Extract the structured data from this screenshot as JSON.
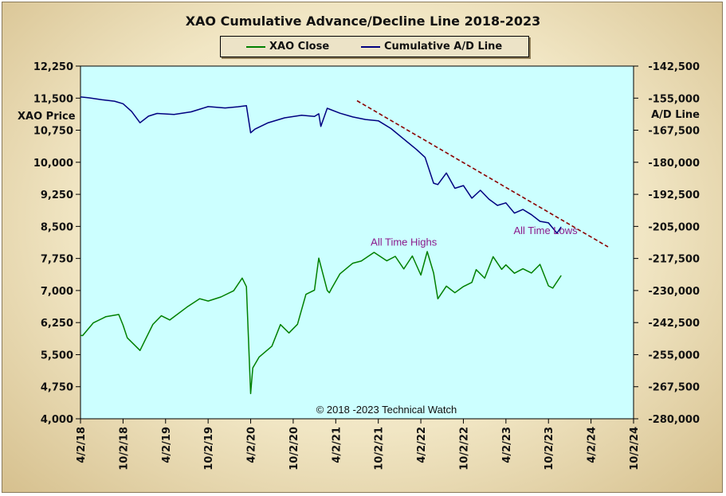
{
  "chart_data": {
    "type": "line",
    "title": "XAO Cumulative Advance/Decline Line 2018-2023",
    "y_left_label": "XAO Price",
    "y_right_label": "A/D Line",
    "y_left_ticks": [
      "12,250",
      "11,500",
      "10,750",
      "10,000",
      "9,250",
      "8,500",
      "7,750",
      "7,000",
      "6,250",
      "5,500",
      "4,750",
      "4,000"
    ],
    "y_right_ticks": [
      "-142,500",
      "-155,000",
      "-167,500",
      "-180,000",
      "-192,500",
      "-205,000",
      "-217,500",
      "-230,000",
      "-242,500",
      "-255,000",
      "-267,500",
      "-280,000"
    ],
    "x_tick_labels": [
      "4/2/18",
      "10/2/18",
      "4/2/19",
      "10/2/19",
      "4/2/20",
      "10/2/20",
      "4/2/21",
      "10/2/21",
      "4/2/22",
      "10/2/22",
      "4/2/23",
      "10/2/23",
      "4/2/24",
      "10/2/24"
    ],
    "ylim_left": [
      4000,
      12250
    ],
    "ylim_right": [
      -280000,
      -142500
    ],
    "xlim": [
      0,
      13
    ],
    "grid": false,
    "legend_placement": "top-center",
    "series": [
      {
        "name": "XAO Close",
        "axis": "left",
        "color": "#008000",
        "x": [
          0,
          0.05,
          0.3,
          0.6,
          0.9,
          1.0,
          1.1,
          1.4,
          1.5,
          1.7,
          1.9,
          2.1,
          2.5,
          2.8,
          3.0,
          3.3,
          3.6,
          3.8,
          3.9,
          4.0,
          4.05,
          4.2,
          4.5,
          4.7,
          4.9,
          5.1,
          5.3,
          5.5,
          5.6,
          5.8,
          5.85,
          5.9,
          6.1,
          6.4,
          6.6,
          6.9,
          7.2,
          7.4,
          7.6,
          7.8,
          8.0,
          8.15,
          8.3,
          8.4,
          8.6,
          8.8,
          9.0,
          9.2,
          9.3,
          9.5,
          9.7,
          9.9,
          10.0,
          10.2,
          10.4,
          10.6,
          10.8,
          11.0,
          11.1,
          11.3
        ],
        "y": [
          5950,
          5950,
          6250,
          6400,
          6450,
          6200,
          5900,
          5600,
          5800,
          6200,
          6400,
          6300,
          6600,
          6800,
          6750,
          6850,
          7000,
          7300,
          7100,
          4600,
          5200,
          5450,
          5700,
          6200,
          6000,
          6200,
          6900,
          7000,
          7750,
          7000,
          6950,
          7050,
          7400,
          7650,
          7700,
          7900,
          7700,
          7800,
          7500,
          7800,
          7350,
          7900,
          7400,
          6800,
          7100,
          6950,
          7100,
          7200,
          7500,
          7300,
          7800,
          7500,
          7600,
          7400,
          7500,
          7400,
          7600,
          7100,
          7050,
          7350
        ]
      },
      {
        "name": "Cumulative A/D Line",
        "axis": "right",
        "color": "#000080",
        "x": [
          0,
          0.2,
          0.5,
          0.8,
          1.0,
          1.2,
          1.4,
          1.6,
          1.8,
          2.2,
          2.6,
          3.0,
          3.4,
          3.7,
          3.9,
          4.0,
          4.1,
          4.4,
          4.8,
          5.2,
          5.5,
          5.6,
          5.65,
          5.8,
          6.1,
          6.4,
          6.7,
          7.0,
          7.3,
          7.6,
          7.9,
          8.1,
          8.3,
          8.4,
          8.6,
          8.8,
          9.0,
          9.2,
          9.4,
          9.6,
          9.8,
          10.0,
          10.2,
          10.4,
          10.6,
          10.8,
          11.0,
          11.2,
          11.3
        ],
        "y": [
          -154500,
          -154800,
          -155500,
          -156000,
          -157000,
          -160000,
          -164500,
          -162000,
          -161000,
          -161500,
          -160500,
          -158500,
          -159000,
          -158500,
          -158000,
          -168500,
          -167000,
          -164500,
          -162500,
          -161500,
          -162000,
          -161000,
          -166000,
          -159000,
          -161000,
          -162500,
          -163500,
          -164000,
          -167000,
          -171000,
          -175000,
          -178000,
          -188000,
          -188500,
          -184000,
          -190000,
          -189000,
          -194000,
          -191000,
          -194500,
          -197000,
          -196000,
          -200000,
          -198500,
          -200500,
          -203000,
          -203500,
          -207500,
          -205000
        ]
      },
      {
        "name": "",
        "axis": "right",
        "color": "#8b0000",
        "dashed": true,
        "x": [
          6.5,
          12.4
        ],
        "y": [
          -156000,
          -213000
        ]
      }
    ],
    "annotations": [
      {
        "text": "All Time Highs",
        "x": 7.6,
        "y_left": 8050
      },
      {
        "text": "All Time  Lows",
        "x": 11.4,
        "y_right": -208000
      }
    ],
    "credit": "© 2018  -2023 Technical Watch"
  }
}
